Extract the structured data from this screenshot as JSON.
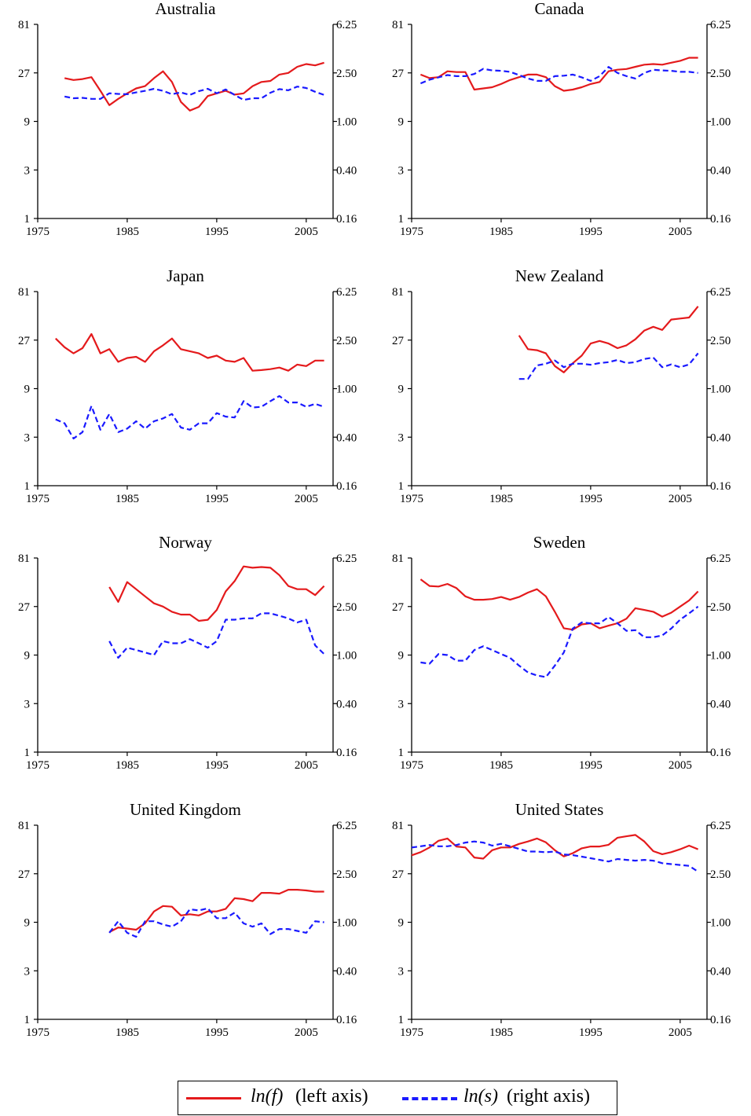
{
  "colors": {
    "f": "#e41a1c",
    "s": "#1a1aff",
    "axis": "#000000"
  },
  "axes": {
    "x_ticks": [
      "1975",
      "1985",
      "1995",
      "2005"
    ],
    "x_range": [
      1975,
      2008
    ],
    "left_ticks": [
      "1",
      "3",
      "9",
      "27",
      "81"
    ],
    "right_ticks": [
      "0.16",
      "0.40",
      "1.00",
      "2.50",
      "6.25"
    ],
    "left_scale": "log3",
    "right_scale": "log2.5",
    "left_range": [
      1,
      81
    ],
    "right_range": [
      0.16,
      6.25
    ],
    "grid": false
  },
  "legend": {
    "placement": "bottom-center",
    "f_label": "ln(f)",
    "f_suffix": " (left axis)",
    "s_label": "ln(s)",
    "s_suffix": " (right axis)"
  },
  "chart_data": [
    {
      "type": "line",
      "title": "Australia",
      "series": [
        {
          "key": "f",
          "x": [
            1978,
            1979,
            1980,
            1981,
            1982,
            1983,
            1984,
            1985,
            1986,
            1987,
            1988,
            1989,
            1990,
            1991,
            1992,
            1993,
            1994,
            1995,
            1996,
            1997,
            1998,
            1999,
            2000,
            2001,
            2002,
            2003,
            2004,
            2005,
            2006,
            2007
          ],
          "values": [
            24,
            23,
            23.5,
            24.5,
            18,
            13,
            15,
            17,
            19,
            20,
            24,
            28,
            22,
            14,
            11.5,
            12.5,
            16,
            17,
            18,
            16.5,
            17,
            20,
            22,
            22.5,
            26,
            27,
            31,
            33,
            32,
            34
          ]
        },
        {
          "key": "s",
          "x": [
            1978,
            1979,
            1980,
            1981,
            1982,
            1983,
            1984,
            1985,
            1986,
            1987,
            1988,
            1989,
            1990,
            1991,
            1992,
            1993,
            1994,
            1995,
            1996,
            1997,
            1998,
            1999,
            2000,
            2001,
            2002,
            2003,
            2004,
            2005,
            2006,
            2007
          ],
          "values": [
            1.6,
            1.55,
            1.56,
            1.53,
            1.53,
            1.7,
            1.68,
            1.67,
            1.73,
            1.78,
            1.85,
            1.78,
            1.67,
            1.73,
            1.65,
            1.77,
            1.85,
            1.7,
            1.83,
            1.65,
            1.5,
            1.55,
            1.55,
            1.72,
            1.84,
            1.8,
            1.93,
            1.88,
            1.75,
            1.65
          ]
        }
      ]
    },
    {
      "type": "line",
      "title": "Canada",
      "series": [
        {
          "key": "f",
          "x": [
            1976,
            1977,
            1978,
            1979,
            1980,
            1981,
            1982,
            1983,
            1984,
            1985,
            1986,
            1987,
            1988,
            1989,
            1990,
            1991,
            1992,
            1993,
            1994,
            1995,
            1996,
            1997,
            1998,
            1999,
            2000,
            2001,
            2002,
            2003,
            2004,
            2005,
            2006,
            2007
          ],
          "values": [
            26,
            24,
            24.5,
            28,
            27.5,
            27.5,
            18.5,
            19,
            19.5,
            21,
            23,
            24.5,
            26,
            26,
            24.5,
            20,
            18,
            18.5,
            19.5,
            21,
            22,
            28,
            29,
            29.5,
            31,
            32.5,
            33,
            32.5,
            34,
            35.5,
            38,
            38
          ]
        },
        {
          "key": "s",
          "x": [
            1976,
            1977,
            1978,
            1979,
            1980,
            1981,
            1982,
            1983,
            1984,
            1985,
            1986,
            1987,
            1988,
            1989,
            1990,
            1991,
            1992,
            1993,
            1994,
            1995,
            1996,
            1997,
            1998,
            1999,
            2000,
            2001,
            2002,
            2003,
            2004,
            2005,
            2006,
            2007
          ],
          "values": [
            2.05,
            2.2,
            2.3,
            2.4,
            2.35,
            2.35,
            2.45,
            2.7,
            2.62,
            2.6,
            2.55,
            2.4,
            2.25,
            2.15,
            2.15,
            2.35,
            2.37,
            2.42,
            2.3,
            2.15,
            2.35,
            2.8,
            2.5,
            2.35,
            2.25,
            2.5,
            2.65,
            2.62,
            2.6,
            2.55,
            2.55,
            2.5
          ]
        }
      ]
    },
    {
      "type": "line",
      "title": "Japan",
      "series": [
        {
          "key": "f",
          "x": [
            1977,
            1978,
            1979,
            1980,
            1981,
            1982,
            1983,
            1984,
            1985,
            1986,
            1987,
            1988,
            1989,
            1990,
            1991,
            1992,
            1993,
            1994,
            1995,
            1996,
            1997,
            1998,
            1999,
            2000,
            2001,
            2002,
            2003,
            2004,
            2005,
            2006,
            2007
          ],
          "values": [
            28,
            23,
            20,
            22.5,
            31,
            20,
            22,
            16.5,
            18,
            18.5,
            16.5,
            21,
            24,
            28,
            22,
            21,
            20,
            18,
            19,
            17,
            16.5,
            18,
            13.5,
            13.7,
            14,
            14.5,
            13.5,
            15.5,
            15,
            17,
            17
          ]
        },
        {
          "key": "s",
          "x": [
            1977,
            1978,
            1979,
            1980,
            1981,
            1982,
            1983,
            1984,
            1985,
            1986,
            1987,
            1988,
            1989,
            1990,
            1991,
            1992,
            1993,
            1994,
            1995,
            1996,
            1997,
            1998,
            1999,
            2000,
            2001,
            2002,
            2003,
            2004,
            2005,
            2006,
            2007
          ],
          "values": [
            0.56,
            0.52,
            0.39,
            0.44,
            0.72,
            0.46,
            0.62,
            0.44,
            0.47,
            0.54,
            0.47,
            0.54,
            0.57,
            0.62,
            0.48,
            0.46,
            0.52,
            0.52,
            0.63,
            0.59,
            0.58,
            0.79,
            0.7,
            0.71,
            0.79,
            0.87,
            0.77,
            0.77,
            0.71,
            0.75,
            0.71
          ]
        }
      ]
    },
    {
      "type": "line",
      "title": "New Zealand",
      "series": [
        {
          "key": "f",
          "x": [
            1987,
            1988,
            1989,
            1990,
            1991,
            1992,
            1993,
            1994,
            1995,
            1996,
            1997,
            1998,
            1999,
            2000,
            2001,
            2002,
            2003,
            2004,
            2005,
            2006,
            2007
          ],
          "values": [
            30,
            22,
            21.5,
            20,
            15,
            13,
            16,
            19,
            25,
            26.5,
            25,
            22.5,
            24,
            27.5,
            33.5,
            36.5,
            34,
            43,
            44,
            45,
            58
          ]
        },
        {
          "key": "s",
          "x": [
            1987,
            1988,
            1989,
            1990,
            1991,
            1992,
            1993,
            1994,
            1995,
            1996,
            1997,
            1998,
            1999,
            2000,
            2001,
            2002,
            2003,
            2004,
            2005,
            2006,
            2007
          ],
          "values": [
            1.2,
            1.2,
            1.55,
            1.6,
            1.7,
            1.5,
            1.6,
            1.6,
            1.57,
            1.62,
            1.65,
            1.72,
            1.62,
            1.65,
            1.75,
            1.8,
            1.5,
            1.58,
            1.5,
            1.58,
            1.95
          ]
        }
      ]
    },
    {
      "type": "line",
      "title": "Norway",
      "series": [
        {
          "key": "f",
          "x": [
            1983,
            1984,
            1985,
            1986,
            1987,
            1988,
            1989,
            1990,
            1991,
            1992,
            1993,
            1994,
            1995,
            1996,
            1997,
            1998,
            1999,
            2000,
            2001,
            2002,
            2003,
            2004,
            2005,
            2006,
            2007
          ],
          "values": [
            42,
            30,
            47,
            40,
            34,
            29,
            27,
            24,
            22.5,
            22.5,
            19.5,
            20,
            25,
            38,
            48,
            67,
            65,
            66,
            65,
            55,
            43,
            40,
            40,
            35,
            43
          ]
        },
        {
          "key": "s",
          "x": [
            1983,
            1984,
            1985,
            1986,
            1987,
            1988,
            1989,
            1990,
            1991,
            1992,
            1993,
            1994,
            1995,
            1996,
            1997,
            1998,
            1999,
            2000,
            2001,
            2002,
            2003,
            2004,
            2005,
            2006,
            2007
          ],
          "values": [
            1.3,
            0.95,
            1.15,
            1.1,
            1.05,
            1.0,
            1.3,
            1.25,
            1.25,
            1.35,
            1.25,
            1.15,
            1.3,
            1.95,
            1.95,
            2.0,
            2.0,
            2.2,
            2.2,
            2.1,
            2.0,
            1.85,
            1.95,
            1.2,
            1.02
          ]
        }
      ]
    },
    {
      "type": "line",
      "title": "Sweden",
      "series": [
        {
          "key": "f",
          "x": [
            1976,
            1977,
            1978,
            1979,
            1980,
            1981,
            1982,
            1983,
            1984,
            1985,
            1986,
            1987,
            1988,
            1989,
            1990,
            1991,
            1992,
            1993,
            1994,
            1995,
            1996,
            1997,
            1998,
            1999,
            2000,
            2001,
            2002,
            2003,
            2004,
            2005,
            2006,
            2007
          ],
          "values": [
            50,
            43,
            42.5,
            45,
            41,
            34,
            31.5,
            31.5,
            32,
            33.5,
            31.5,
            33.5,
            37,
            40,
            34,
            24,
            16.5,
            16,
            18,
            18.5,
            16.5,
            17.5,
            18.5,
            20.5,
            26,
            25,
            24,
            21.5,
            23.5,
            27,
            31,
            38
          ]
        },
        {
          "key": "s",
          "x": [
            1976,
            1977,
            1978,
            1979,
            1980,
            1981,
            1982,
            1983,
            1984,
            1985,
            1986,
            1987,
            1988,
            1989,
            1990,
            1991,
            1992,
            1993,
            1994,
            1995,
            1996,
            1997,
            1998,
            1999,
            2000,
            2001,
            2002,
            2003,
            2004,
            2005,
            2006,
            2007
          ],
          "values": [
            0.87,
            0.85,
            1.02,
            1.0,
            0.9,
            0.9,
            1.1,
            1.18,
            1.1,
            1.02,
            0.95,
            0.82,
            0.72,
            0.68,
            0.66,
            0.82,
            1.05,
            1.65,
            1.85,
            1.82,
            1.82,
            2.05,
            1.82,
            1.58,
            1.6,
            1.4,
            1.4,
            1.45,
            1.65,
            1.95,
            2.2,
            2.5
          ]
        }
      ]
    },
    {
      "type": "line",
      "title": "United Kingdom",
      "series": [
        {
          "key": "f",
          "x": [
            1983,
            1984,
            1985,
            1986,
            1987,
            1988,
            1989,
            1990,
            1991,
            1992,
            1993,
            1994,
            1995,
            1996,
            1997,
            1998,
            1999,
            2000,
            2001,
            2002,
            2003,
            2004,
            2005,
            2006,
            2007
          ],
          "values": [
            7.2,
            8,
            7.8,
            7.6,
            8.8,
            11.5,
            13,
            12.8,
            10.5,
            10.8,
            10.5,
            11.5,
            11.5,
            12.2,
            15.5,
            15.2,
            14.5,
            17.5,
            17.5,
            17.2,
            18.8,
            18.8,
            18.5,
            18,
            18
          ]
        },
        {
          "key": "s",
          "x": [
            1983,
            1984,
            1985,
            1986,
            1987,
            1988,
            1989,
            1990,
            1991,
            1992,
            1993,
            1994,
            1995,
            1996,
            1997,
            1998,
            1999,
            2000,
            2001,
            2002,
            2003,
            2004,
            2005,
            2006,
            2007
          ],
          "values": [
            0.82,
            1.02,
            0.82,
            0.76,
            1.02,
            1.02,
            0.96,
            0.92,
            1.02,
            1.28,
            1.25,
            1.3,
            1.08,
            1.08,
            1.2,
            0.98,
            0.92,
            0.98,
            0.8,
            0.88,
            0.88,
            0.85,
            0.82,
            1.02,
            1.0
          ]
        }
      ]
    },
    {
      "type": "line",
      "title": "United States",
      "series": [
        {
          "key": "f",
          "x": [
            1975,
            1976,
            1977,
            1978,
            1979,
            1980,
            1981,
            1982,
            1983,
            1984,
            1985,
            1986,
            1987,
            1988,
            1989,
            1990,
            1991,
            1992,
            1993,
            1994,
            1995,
            1996,
            1997,
            1998,
            1999,
            2000,
            2001,
            2002,
            2003,
            2004,
            2005,
            2006,
            2007
          ],
          "values": [
            41,
            44,
            49,
            57,
            60,
            50,
            49,
            39,
            38,
            46,
            49,
            49,
            53,
            56,
            60,
            55,
            46,
            40,
            43,
            48,
            50,
            50,
            52,
            61,
            63,
            65,
            56,
            45,
            42,
            44,
            47,
            51,
            47
          ]
        },
        {
          "key": "s",
          "x": [
            1975,
            1976,
            1977,
            1978,
            1979,
            1980,
            1981,
            1982,
            1983,
            1984,
            1985,
            1986,
            1987,
            1988,
            1989,
            1990,
            1991,
            1992,
            1993,
            1994,
            1995,
            1996,
            1997,
            1998,
            1999,
            2000,
            2001,
            2002,
            2003,
            2004,
            2005,
            2006,
            2007
          ],
          "values": [
            4.1,
            4.2,
            4.3,
            4.2,
            4.2,
            4.3,
            4.5,
            4.6,
            4.5,
            4.25,
            4.4,
            4.2,
            4.0,
            3.8,
            3.8,
            3.75,
            3.8,
            3.6,
            3.55,
            3.45,
            3.35,
            3.25,
            3.15,
            3.3,
            3.25,
            3.2,
            3.25,
            3.2,
            3.05,
            3.0,
            2.95,
            2.9,
            2.6
          ]
        }
      ]
    }
  ]
}
